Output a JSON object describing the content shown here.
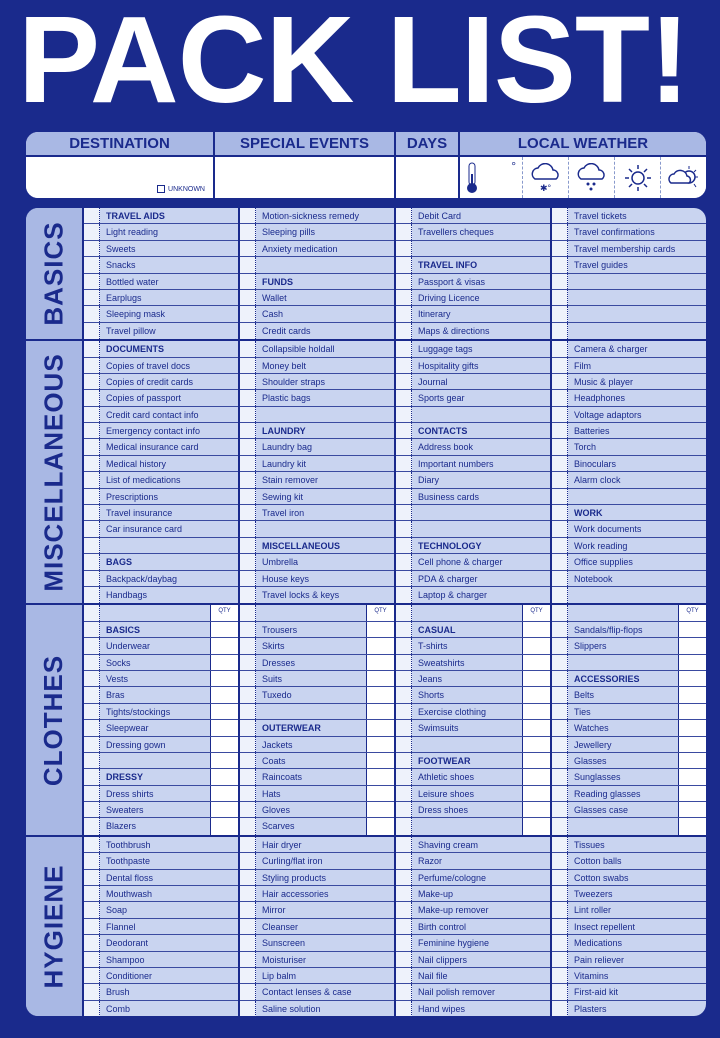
{
  "title": "PACK LIST!",
  "info": {
    "headers": [
      "DESTINATION",
      "SPECIAL EVENTS",
      "DAYS",
      "LOCAL WEATHER"
    ],
    "unknown_label": "UNKNOWN",
    "degree": "°",
    "weather_icons": [
      "thermometer-icon",
      "cloud-snow-icon",
      "cloud-rain-icon",
      "sun-icon",
      "cloud-sun-icon"
    ]
  },
  "qty_label": "QTY",
  "colors": {
    "background": "#1a2a8c",
    "header": "#a9b8e4",
    "cell": "#c9d4f0"
  },
  "sections": [
    {
      "label": "BASICS",
      "qty": false,
      "columns": [
        [
          "TRAVEL AIDS",
          "Light reading",
          "Sweets",
          "Snacks",
          "Bottled water",
          "Earplugs",
          "Sleeping mask",
          "Travel pillow"
        ],
        [
          "Motion-sickness remedy",
          "Sleeping pills",
          "Anxiety medication",
          "",
          "FUNDS",
          "Wallet",
          "Cash",
          "Credit cards"
        ],
        [
          "Debit Card",
          "Travellers cheques",
          "",
          "TRAVEL INFO",
          "Passport & visas",
          "Driving Licence",
          "Itinerary",
          "Maps & directions"
        ],
        [
          "Travel tickets",
          "Travel confirmations",
          "Travel membership cards",
          "Travel guides",
          "",
          "",
          "",
          ""
        ]
      ]
    },
    {
      "label": "MISCELLANEOUS",
      "qty": false,
      "columns": [
        [
          "DOCUMENTS",
          "Copies of travel docs",
          "Copies of credit cards",
          "Copies of passport",
          "Credit card contact info",
          "Emergency contact info",
          "Medical insurance card",
          "Medical history",
          "List of medications",
          "Prescriptions",
          "Travel insurance",
          "Car insurance card",
          "",
          "BAGS",
          "Backpack/daybag",
          "Handbags"
        ],
        [
          "Collapsible holdall",
          "Money belt",
          "Shoulder straps",
          "Plastic bags",
          "",
          "LAUNDRY",
          "Laundry bag",
          "Laundry kit",
          "Stain remover",
          "Sewing kit",
          "Travel iron",
          "",
          "MISCELLANEOUS",
          "Umbrella",
          "House keys",
          "Travel locks & keys"
        ],
        [
          "Luggage tags",
          "Hospitality gifts",
          "Journal",
          "Sports gear",
          "",
          "CONTACTS",
          "Address book",
          "Important numbers",
          "Diary",
          "Business cards",
          "",
          "",
          "TECHNOLOGY",
          "Cell phone & charger",
          "PDA & charger",
          "Laptop & charger"
        ],
        [
          "Camera & charger",
          "Film",
          "Music & player",
          "Headphones",
          "Voltage adaptors",
          "Batteries",
          "Torch",
          "Binoculars",
          "Alarm clock",
          "",
          "WORK",
          "Work documents",
          "Work reading",
          "Office supplies",
          "Notebook",
          ""
        ]
      ]
    },
    {
      "label": "CLOTHES",
      "qty": true,
      "columns": [
        [
          "BASICS",
          "Underwear",
          "Socks",
          "Vests",
          "Bras",
          "Tights/stockings",
          "Sleepwear",
          "Dressing gown",
          "",
          "DRESSY",
          "Dress shirts",
          "Sweaters",
          "Blazers"
        ],
        [
          "Trousers",
          "Skirts",
          "Dresses",
          "Suits",
          "Tuxedo",
          "",
          "OUTERWEAR",
          "Jackets",
          "Coats",
          "Raincoats",
          "Hats",
          "Gloves",
          "Scarves"
        ],
        [
          "CASUAL",
          "T-shirts",
          "Sweatshirts",
          "Jeans",
          "Shorts",
          "Exercise clothing",
          "Swimsuits",
          "",
          "FOOTWEAR",
          "Athletic shoes",
          "Leisure shoes",
          "Dress shoes",
          ""
        ],
        [
          "Sandals/flip-flops",
          "Slippers",
          "",
          "ACCESSORIES",
          "Belts",
          "Ties",
          "Watches",
          "Jewellery",
          "Glasses",
          "Sunglasses",
          "Reading glasses",
          "Glasses case",
          ""
        ]
      ]
    },
    {
      "label": "HYGIENE",
      "qty": false,
      "columns": [
        [
          "Toothbrush",
          "Toothpaste",
          "Dental floss",
          "Mouthwash",
          "Soap",
          "Flannel",
          "Deodorant",
          "Shampoo",
          "Conditioner",
          "Brush",
          "Comb"
        ],
        [
          "Hair dryer",
          "Curling/flat iron",
          "Styling products",
          "Hair accessories",
          "Mirror",
          "Cleanser",
          "Sunscreen",
          "Moisturiser",
          "Lip balm",
          "Contact lenses & case",
          "Saline solution"
        ],
        [
          "Shaving cream",
          "Razor",
          "Perfume/cologne",
          "Make-up",
          "Make-up remover",
          "Birth control",
          "Feminine hygiene",
          "Nail clippers",
          "Nail file",
          "Nail polish remover",
          "Hand wipes"
        ],
        [
          "Tissues",
          "Cotton balls",
          "Cotton swabs",
          "Tweezers",
          "Lint roller",
          "Insect repellent",
          "Medications",
          "Pain reliever",
          "Vitamins",
          "First-aid kit",
          "Plasters"
        ]
      ]
    }
  ]
}
